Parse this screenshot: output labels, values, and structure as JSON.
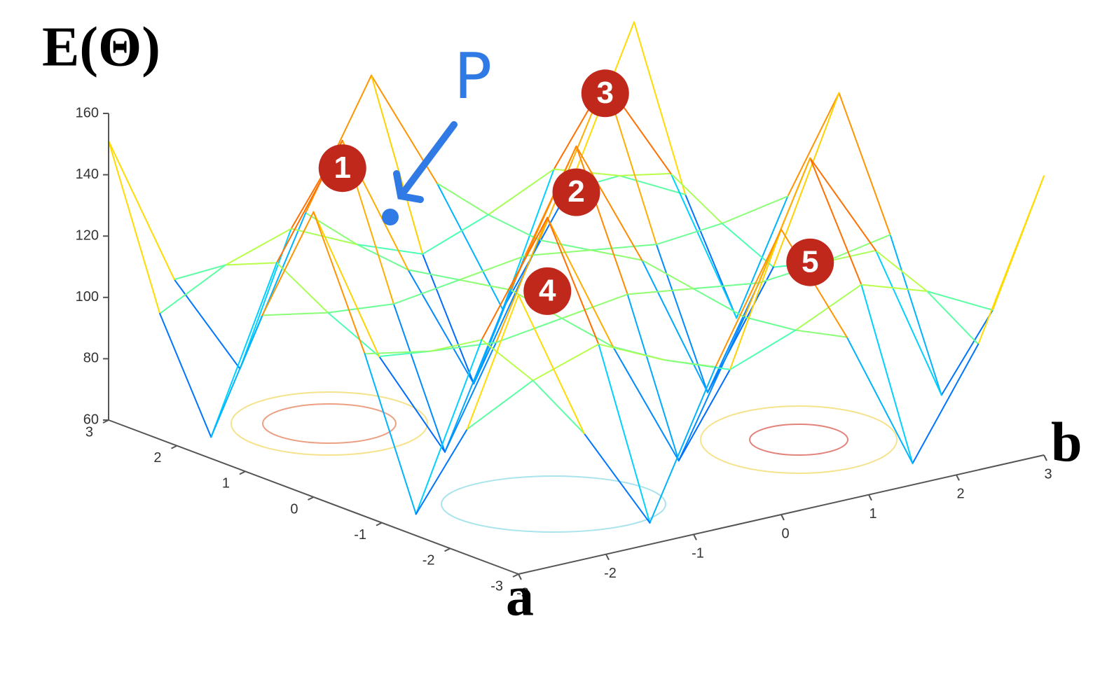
{
  "chart_data": {
    "type": "surface",
    "zlabel": "E(Θ)",
    "xlabel": "a",
    "ylabel": "b",
    "x": [
      -3,
      -2.25,
      -1.5,
      -0.75,
      0,
      0.75,
      1.5,
      2.25,
      3
    ],
    "y": [
      -3,
      -2.25,
      -1.5,
      -0.75,
      0,
      0.75,
      1.5,
      2.25,
      3
    ],
    "z": [
      [
        151,
        101,
        67,
        113,
        153,
        113,
        67,
        101,
        151
      ],
      [
        101,
        112,
        119,
        109,
        101,
        109,
        119,
        112,
        101
      ],
      [
        67,
        119,
        154,
        107,
        65,
        107,
        154,
        119,
        67
      ],
      [
        113,
        109,
        107,
        110,
        113,
        110,
        107,
        109,
        113
      ],
      [
        153,
        101,
        65,
        113,
        155,
        113,
        65,
        101,
        153
      ],
      [
        113,
        109,
        107,
        110,
        113,
        110,
        107,
        109,
        113
      ],
      [
        67,
        119,
        154,
        107,
        65,
        107,
        154,
        119,
        67
      ],
      [
        101,
        112,
        119,
        109,
        101,
        109,
        119,
        112,
        101
      ],
      [
        151,
        101,
        67,
        113,
        153,
        113,
        67,
        101,
        151
      ]
    ],
    "xlim": [
      -3,
      3
    ],
    "ylim": [
      -3,
      3
    ],
    "zlim": [
      60,
      160
    ],
    "xticks": [
      -3,
      -2,
      -1,
      0,
      1,
      2,
      3
    ],
    "yticks": [
      -3,
      -2,
      -1,
      0,
      1,
      2,
      3
    ],
    "zticks": [
      60,
      80,
      100,
      120,
      140,
      160
    ],
    "colormap": "jet",
    "annotations": [
      "1",
      "2",
      "3",
      "4",
      "5"
    ],
    "point_label": "P"
  }
}
